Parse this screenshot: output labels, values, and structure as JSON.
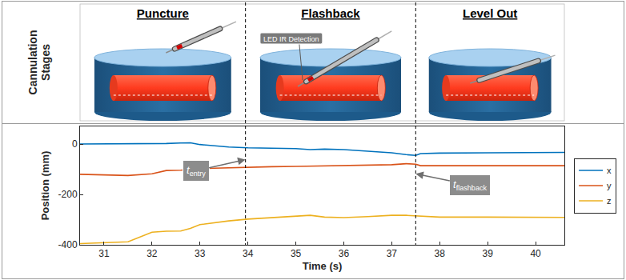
{
  "diagram": {
    "row_label": [
      "Cannulation",
      "Stages"
    ],
    "stages": [
      "Puncture",
      "Flashback",
      "Level Out"
    ],
    "callout": "LED IR Detection"
  },
  "chart_data": {
    "type": "line",
    "x_label": "Time (s)",
    "y_label": "Position (mm)",
    "x": [
      30.5,
      31,
      31.5,
      32,
      32.3,
      32.6,
      32.8,
      33,
      33.3,
      33.6,
      34,
      34.5,
      35,
      35.3,
      35.6,
      36,
      36.5,
      37,
      37.3,
      37.5,
      37.6,
      38,
      39,
      40,
      40.6
    ],
    "series": [
      {
        "name": "x",
        "color": "#0072BD",
        "values": [
          0,
          0,
          0,
          0,
          2,
          4,
          5,
          -2,
          -8,
          -12,
          -15,
          -17,
          -18,
          -22,
          -20,
          -22,
          -28,
          -35,
          -42,
          -45,
          -38,
          -36,
          -35,
          -33,
          -33
        ]
      },
      {
        "name": "y",
        "color": "#D95319",
        "values": [
          -120,
          -122,
          -125,
          -118,
          -105,
          -104,
          -100,
          -98,
          -96,
          -94,
          -92,
          -90,
          -89,
          -88,
          -87,
          -86,
          -85,
          -82,
          -78,
          -80,
          -86,
          -86,
          -86,
          -86,
          -86
        ]
      },
      {
        "name": "z",
        "color": "#EDB120",
        "values": [
          -395,
          -392,
          -388,
          -350,
          -346,
          -345,
          -335,
          -320,
          -312,
          -305,
          -298,
          -292,
          -285,
          -283,
          -290,
          -292,
          -288,
          -283,
          -283,
          -285,
          -288,
          -290,
          -290,
          -291,
          -291
        ]
      }
    ],
    "xlim": [
      30.5,
      40.6
    ],
    "xticks": [
      31,
      32,
      33,
      34,
      35,
      36,
      37,
      38,
      39,
      40
    ],
    "ylim": [
      -400,
      70
    ],
    "yticks": [
      -400,
      -200,
      0
    ],
    "annotations": [
      {
        "x": 33.95,
        "text": "t",
        "subscript": "entry"
      },
      {
        "x": 37.5,
        "text": "t",
        "subscript": "flashback"
      }
    ],
    "grid": false,
    "legend": "right"
  }
}
